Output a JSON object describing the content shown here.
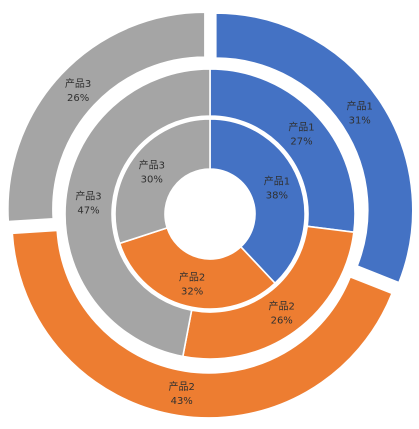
{
  "chart_data": {
    "type": "doughnut",
    "title": "",
    "legend": "none",
    "colors": {
      "产品1": "#4472c4",
      "产品2": "#ed7d31",
      "产品3": "#a5a5a5"
    },
    "rings": [
      {
        "ring": "inner",
        "series": [
          {
            "name": "产品1",
            "value": 38,
            "label": "38%"
          },
          {
            "name": "产品2",
            "value": 32,
            "label": "32%"
          },
          {
            "name": "产品3",
            "value": 30,
            "label": "30%"
          }
        ]
      },
      {
        "ring": "middle",
        "series": [
          {
            "name": "产品1",
            "value": 27,
            "label": "27%"
          },
          {
            "name": "产品2",
            "value": 26,
            "label": "26%"
          },
          {
            "name": "产品3",
            "value": 47,
            "label": "47%"
          }
        ]
      },
      {
        "ring": "outer",
        "series": [
          {
            "name": "产品1",
            "value": 31,
            "label": "31%"
          },
          {
            "name": "产品2",
            "value": 43,
            "label": "43%"
          },
          {
            "name": "产品3",
            "value": 26,
            "label": "26%"
          }
        ]
      }
    ]
  }
}
